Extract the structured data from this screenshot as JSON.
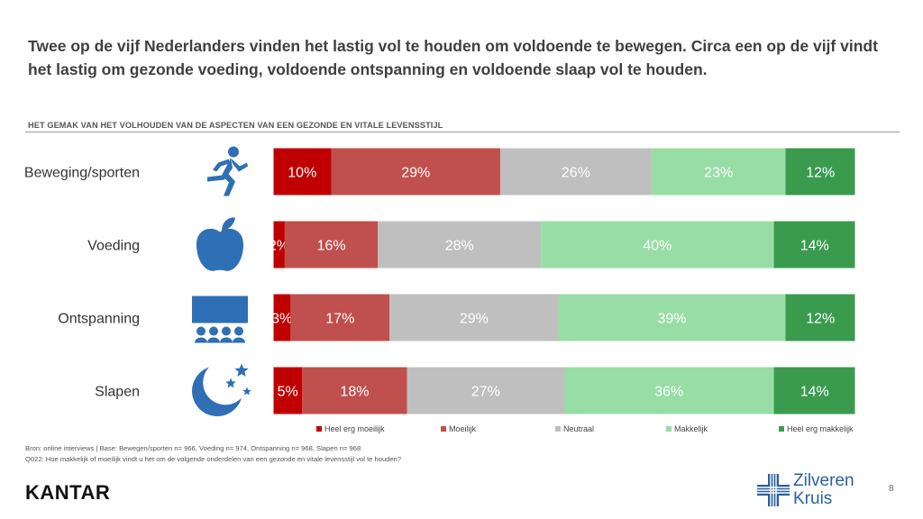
{
  "title": "Twee op de vijf Nederlanders vinden het lastig vol te houden om voldoende te bewegen. Circa een op de vijf vindt het lastig om gezonde voeding, voldoende ontspanning en voldoende slaap vol te houden.",
  "footer": {
    "source": "Bron: online interviews | Base: Bewegen/sporten n= 966, Voeding n= 974, Ontspanning n= 968, Slapen n= 968",
    "question": "Q022: Hoe makkelijk of moeilijk vindt u het om de volgende onderdelen van een gezonde en vitale levensstijl vol te houden?",
    "brand": "KANTAR",
    "client_line1": "Zilveren",
    "client_line2": "Kruis",
    "page": "8"
  },
  "chart_data": {
    "type": "bar",
    "orientation": "horizontal",
    "stacked": true,
    "percent": true,
    "title": "HET GEMAK VAN HET VOLHOUDEN VAN DE ASPECTEN VAN EEN GEZONDE EN VITALE LEVENSSTIJL",
    "categories": [
      "Beweging/sporten",
      "Voeding",
      "Ontspanning",
      "Slapen"
    ],
    "category_icons": [
      "running-person-icon",
      "apple-icon",
      "audience-icon",
      "moon-stars-icon"
    ],
    "series": [
      {
        "name": "Heel erg moeilijk",
        "color": "#c00000",
        "values": [
          10,
          2,
          3,
          5
        ]
      },
      {
        "name": "Moeilijk",
        "color": "#c0504d",
        "values": [
          29,
          16,
          17,
          18
        ]
      },
      {
        "name": "Neutraal",
        "color": "#bfbfbf",
        "values": [
          26,
          28,
          29,
          27
        ]
      },
      {
        "name": "Makkelijk",
        "color": "#98dda6",
        "values": [
          23,
          40,
          39,
          36
        ]
      },
      {
        "name": "Heel erg makkelijk",
        "color": "#3a9b4f",
        "values": [
          12,
          14,
          12,
          14
        ]
      }
    ],
    "legend_position": "bottom",
    "grid": false
  }
}
